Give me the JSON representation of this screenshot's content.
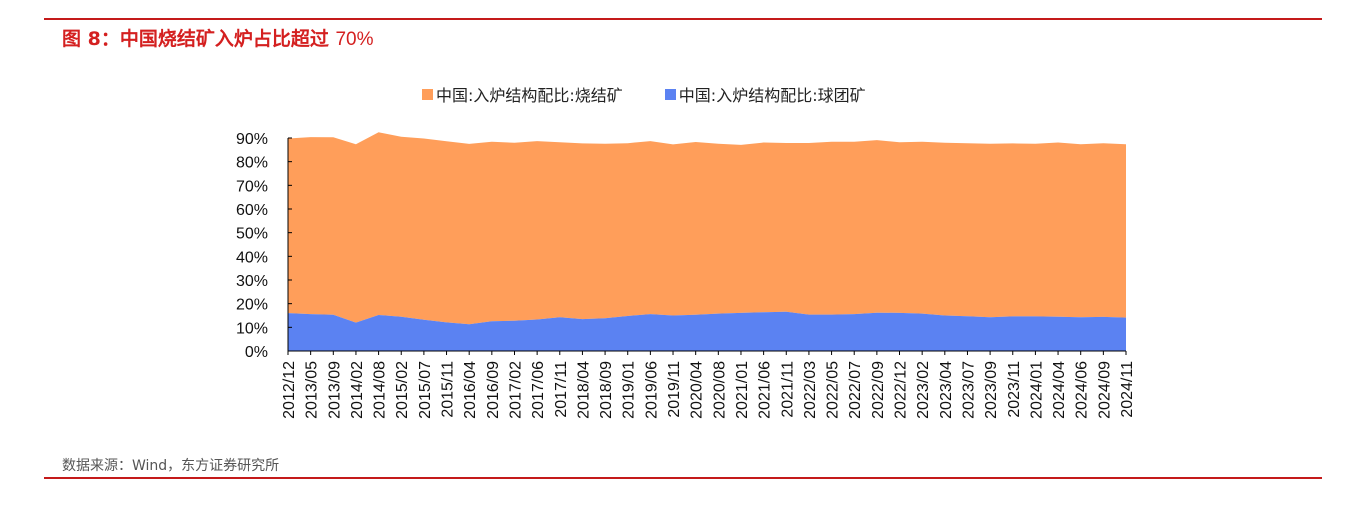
{
  "figure": {
    "label": "图 8：",
    "title_text": "中国烧结矿入炉占比超过",
    "title_num": "70%"
  },
  "source": "数据来源：Wind，东方证券研究所",
  "colors": {
    "rule": "#c41a1a",
    "title": "#d42020",
    "sinter": "#ff9e5a",
    "pellet": "#5b82f2"
  },
  "chart_data": {
    "type": "area",
    "stacked": true,
    "legend_position": "top-center",
    "grid": false,
    "ylim": [
      0,
      90
    ],
    "yticks": [
      "0%",
      "10%",
      "20%",
      "30%",
      "40%",
      "50%",
      "60%",
      "70%",
      "80%",
      "90%"
    ],
    "xlabels": [
      "2012/12",
      "2013/05",
      "2013/09",
      "2014/02",
      "2014/08",
      "2015/02",
      "2015/07",
      "2015/11",
      "2016/04",
      "2016/09",
      "2017/02",
      "2017/06",
      "2017/11",
      "2018/04",
      "2018/09",
      "2019/01",
      "2019/06",
      "2019/11",
      "2020/04",
      "2020/08",
      "2021/01",
      "2021/06",
      "2021/11",
      "2022/03",
      "2022/05",
      "2022/07",
      "2022/09",
      "2022/12",
      "2023/02",
      "2023/04",
      "2023/07",
      "2023/09",
      "2023/11",
      "2024/01",
      "2024/04",
      "2024/06",
      "2024/09",
      "2024/11"
    ],
    "series": [
      {
        "name": "中国:入炉结构配比:烧结矿",
        "color": "#ff9e5a",
        "values": [
          73.8,
          74.8,
          75.0,
          75.4,
          77.2,
          76.0,
          76.6,
          76.5,
          76.2,
          75.8,
          75.2,
          75.4,
          73.9,
          74.2,
          73.8,
          73.0,
          73.1,
          72.3,
          73.0,
          71.8,
          71.0,
          71.7,
          71.3,
          72.5,
          73.0,
          72.8,
          72.9,
          72.1,
          72.6,
          73.0,
          73.1,
          73.3,
          73.1,
          73.0,
          73.6,
          73.1,
          73.4,
          73.3
        ]
      },
      {
        "name": "中国:入炉结构配比:球团矿",
        "color": "#5b82f2",
        "values": [
          16.0,
          15.6,
          15.3,
          12.0,
          15.2,
          14.5,
          13.2,
          12.1,
          11.3,
          12.6,
          12.8,
          13.3,
          14.3,
          13.5,
          13.8,
          14.8,
          15.6,
          15.0,
          15.3,
          15.8,
          16.1,
          16.4,
          16.6,
          15.4,
          15.4,
          15.6,
          16.2,
          16.1,
          15.8,
          15.0,
          14.7,
          14.3,
          14.6,
          14.6,
          14.5,
          14.3,
          14.4,
          14.1
        ]
      }
    ]
  }
}
